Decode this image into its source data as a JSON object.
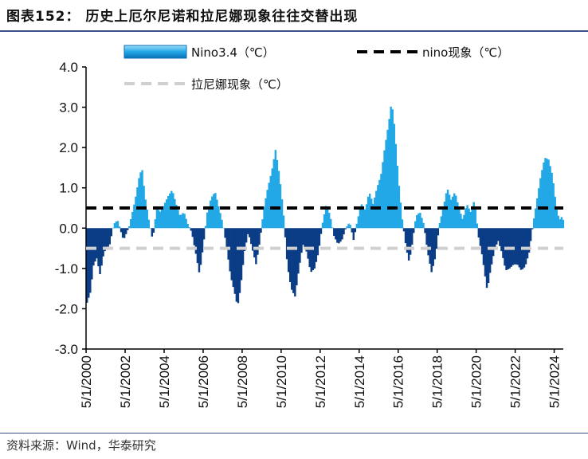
{
  "title": "图表152： 历史上厄尔尼诺和拉尼娜现象往往交替出现",
  "source": "资料来源：Wind，华泰研究",
  "colors": {
    "positive": "#22a8e6",
    "negative": "#0b3d86",
    "el_nino_line": "#000000",
    "la_nina_line": "#d0d0d0",
    "rule": "#3d4f8a"
  },
  "chart_data": {
    "type": "area",
    "title": "图表152： 历史上厄尔尼诺和拉尼娜现象往往交替出现",
    "xlabel": "",
    "ylabel": "",
    "ylim": [
      -3.0,
      4.0
    ],
    "y_ticks": [
      "4.0",
      "3.0",
      "2.0",
      "1.0",
      "0.0",
      "-1.0",
      "-2.0",
      "-3.0"
    ],
    "x_ticks": [
      "5/1/2000",
      "5/1/2002",
      "5/1/2004",
      "5/1/2006",
      "5/1/2008",
      "5/1/2010",
      "5/1/2012",
      "5/1/2014",
      "5/1/2016",
      "5/1/2018",
      "5/1/2020",
      "5/1/2022",
      "5/1/2024"
    ],
    "x_range": [
      2000.33,
      2024.8
    ],
    "grid": false,
    "legend": {
      "position": "top",
      "items": [
        "Nino3.4（℃）",
        "nino现象（℃）",
        "拉尼娜现象（℃）"
      ]
    },
    "series": [
      {
        "name": "Nino3.4（℃）",
        "type": "area",
        "points": [
          [
            2000.33,
            -1.85
          ],
          [
            2000.5,
            -1.6
          ],
          [
            2000.67,
            -0.9
          ],
          [
            2000.83,
            -0.75
          ],
          [
            2001.0,
            -1.15
          ],
          [
            2001.2,
            -0.6
          ],
          [
            2001.5,
            -0.4
          ],
          [
            2001.7,
            0.1
          ],
          [
            2001.9,
            0.2
          ],
          [
            2002.2,
            -0.3
          ],
          [
            2002.5,
            0.05
          ],
          [
            2002.8,
            0.7
          ],
          [
            2003.0,
            1.25
          ],
          [
            2003.15,
            1.5
          ],
          [
            2003.3,
            0.8
          ],
          [
            2003.5,
            0.2
          ],
          [
            2003.7,
            -0.3
          ],
          [
            2003.9,
            0.5
          ],
          [
            2004.1,
            0.4
          ],
          [
            2004.3,
            0.6
          ],
          [
            2004.5,
            0.8
          ],
          [
            2004.7,
            0.95
          ],
          [
            2004.9,
            0.6
          ],
          [
            2005.1,
            0.3
          ],
          [
            2005.3,
            0.4
          ],
          [
            2005.5,
            0.1
          ],
          [
            2005.7,
            -0.1
          ],
          [
            2005.9,
            -0.6
          ],
          [
            2006.1,
            -1.15
          ],
          [
            2006.3,
            -0.4
          ],
          [
            2006.5,
            0.4
          ],
          [
            2006.7,
            0.75
          ],
          [
            2006.9,
            0.9
          ],
          [
            2007.1,
            0.5
          ],
          [
            2007.3,
            0.1
          ],
          [
            2007.5,
            -0.5
          ],
          [
            2007.7,
            -1.2
          ],
          [
            2007.9,
            -1.6
          ],
          [
            2008.05,
            -1.95
          ],
          [
            2008.2,
            -1.5
          ],
          [
            2008.4,
            -0.6
          ],
          [
            2008.6,
            -0.1
          ],
          [
            2008.8,
            -0.5
          ],
          [
            2009.0,
            -0.9
          ],
          [
            2009.2,
            -0.3
          ],
          [
            2009.4,
            0.5
          ],
          [
            2009.6,
            1.0
          ],
          [
            2009.8,
            1.4
          ],
          [
            2010.0,
            1.95
          ],
          [
            2010.2,
            1.3
          ],
          [
            2010.4,
            0.4
          ],
          [
            2010.6,
            -0.9
          ],
          [
            2010.8,
            -1.5
          ],
          [
            2011.0,
            -1.7
          ],
          [
            2011.2,
            -1.0
          ],
          [
            2011.4,
            -0.4
          ],
          [
            2011.6,
            -0.6
          ],
          [
            2011.8,
            -1.1
          ],
          [
            2012.0,
            -1.0
          ],
          [
            2012.2,
            -0.6
          ],
          [
            2012.4,
            0.1
          ],
          [
            2012.6,
            0.6
          ],
          [
            2012.8,
            0.3
          ],
          [
            2013.0,
            -0.2
          ],
          [
            2013.2,
            -0.4
          ],
          [
            2013.4,
            -0.3
          ],
          [
            2013.6,
            0.0
          ],
          [
            2013.8,
            0.15
          ],
          [
            2014.0,
            -0.3
          ],
          [
            2014.2,
            0.2
          ],
          [
            2014.4,
            0.6
          ],
          [
            2014.6,
            0.45
          ],
          [
            2014.8,
            0.9
          ],
          [
            2015.0,
            0.6
          ],
          [
            2015.2,
            1.0
          ],
          [
            2015.4,
            1.3
          ],
          [
            2015.6,
            2.0
          ],
          [
            2015.8,
            2.6
          ],
          [
            2015.95,
            3.15
          ],
          [
            2016.1,
            2.5
          ],
          [
            2016.3,
            1.2
          ],
          [
            2016.5,
            0.2
          ],
          [
            2016.7,
            -0.5
          ],
          [
            2016.85,
            -0.85
          ],
          [
            2017.0,
            -0.4
          ],
          [
            2017.2,
            0.3
          ],
          [
            2017.4,
            0.4
          ],
          [
            2017.6,
            0.1
          ],
          [
            2017.8,
            -0.6
          ],
          [
            2018.0,
            -1.1
          ],
          [
            2018.2,
            -0.7
          ],
          [
            2018.4,
            0.1
          ],
          [
            2018.6,
            0.5
          ],
          [
            2018.8,
            1.0
          ],
          [
            2019.0,
            0.7
          ],
          [
            2019.2,
            0.9
          ],
          [
            2019.4,
            0.5
          ],
          [
            2019.6,
            0.2
          ],
          [
            2019.8,
            0.6
          ],
          [
            2020.0,
            0.4
          ],
          [
            2020.2,
            0.7
          ],
          [
            2020.4,
            -0.2
          ],
          [
            2020.6,
            -0.7
          ],
          [
            2020.85,
            -1.55
          ],
          [
            2021.0,
            -1.1
          ],
          [
            2021.2,
            -0.6
          ],
          [
            2021.4,
            -0.3
          ],
          [
            2021.6,
            -0.6
          ],
          [
            2021.8,
            -1.05
          ],
          [
            2022.0,
            -1.0
          ],
          [
            2022.2,
            -0.9
          ],
          [
            2022.4,
            -0.9
          ],
          [
            2022.6,
            -1.05
          ],
          [
            2022.8,
            -0.95
          ],
          [
            2023.0,
            -0.6
          ],
          [
            2023.2,
            0.1
          ],
          [
            2023.4,
            0.7
          ],
          [
            2023.6,
            1.3
          ],
          [
            2023.8,
            1.75
          ],
          [
            2024.0,
            1.7
          ],
          [
            2024.2,
            1.3
          ],
          [
            2024.4,
            0.5
          ],
          [
            2024.55,
            0.2
          ],
          [
            2024.7,
            0.3
          ],
          [
            2024.8,
            0.1
          ]
        ]
      },
      {
        "name": "nino现象（℃）",
        "type": "line",
        "style": "dashed",
        "value": 0.5
      },
      {
        "name": "拉尼娜现象（℃）",
        "type": "line",
        "style": "dashed",
        "value": -0.5
      }
    ]
  }
}
